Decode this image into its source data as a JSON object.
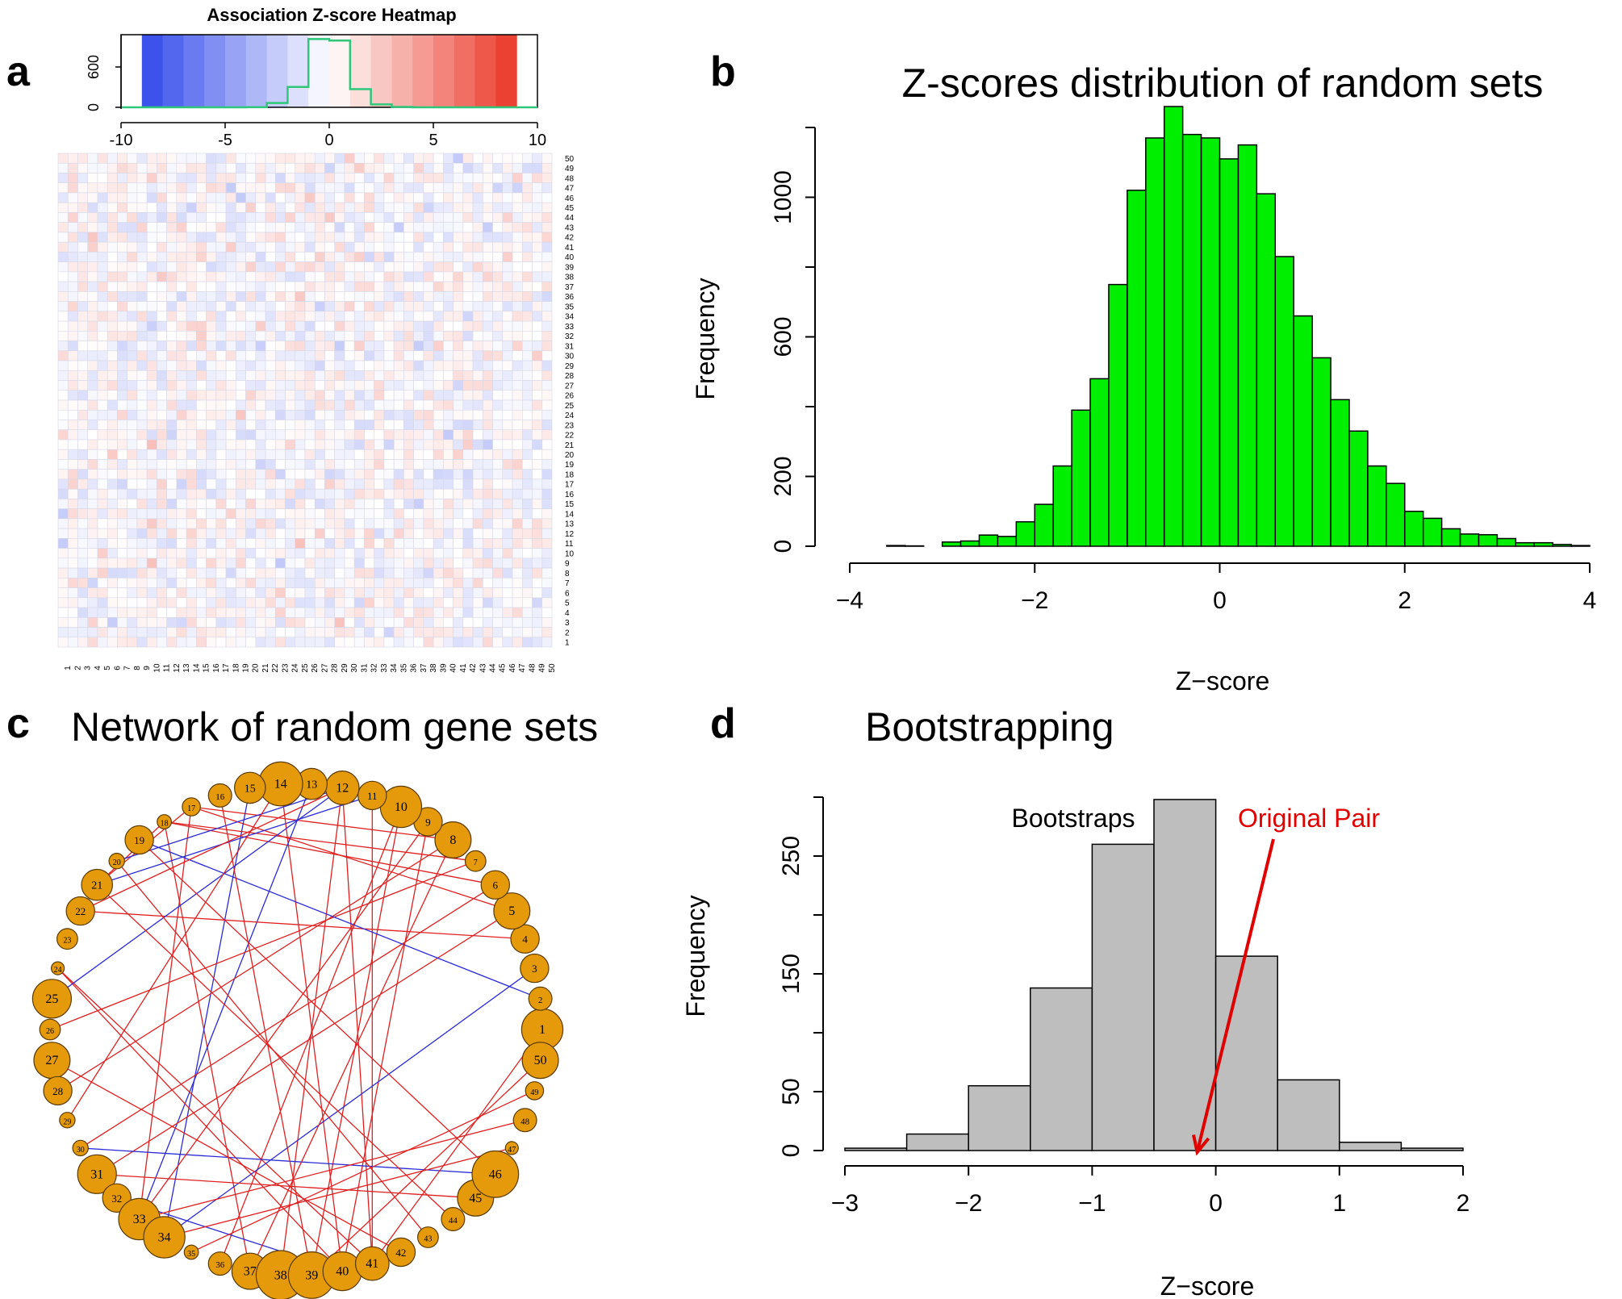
{
  "panel_letters": {
    "a": "a",
    "b": "b",
    "c": "c",
    "d": "d"
  },
  "colors": {
    "heat_negative": "#1a33e8",
    "heat_neutral": "#ffffff",
    "heat_positive": "#e8200f",
    "key_histogram_line": "#2ec77a",
    "histogram_b_fill": "#00ee00",
    "histogram_d_fill": "#bebebe",
    "node_fill": "#e59a0b",
    "edge_positive": "#e02020",
    "edge_negative": "#2b2bd6",
    "arrow_color": "#e00000"
  },
  "chart_data": [
    {
      "panel": "a",
      "type": "heatmap",
      "title": "Association Z-score Heatmap",
      "color_key": {
        "range": [
          -10,
          10
        ],
        "bin_edges": [
          -9,
          -8,
          -7,
          -6,
          -5,
          -4,
          -3,
          -2,
          -1,
          0,
          1,
          2,
          3,
          4,
          5,
          6,
          7,
          8,
          9
        ],
        "ticks": [
          "-10",
          "-5",
          "0",
          "5",
          "10"
        ],
        "count_axis_ticks": [
          "0",
          "600"
        ],
        "count_axis_max": 1000,
        "histogram_counts": [
          0,
          0,
          0,
          0,
          0,
          0,
          2,
          60,
          280,
          940,
          920,
          250,
          40,
          5,
          0,
          0,
          0,
          0,
          0,
          0
        ]
      },
      "grid_size": 50,
      "row_labels": [
        "1",
        "2",
        "3",
        "4",
        "5",
        "6",
        "7",
        "8",
        "9",
        "10",
        "11",
        "12",
        "13",
        "14",
        "15",
        "16",
        "17",
        "18",
        "19",
        "20",
        "21",
        "22",
        "23",
        "24",
        "25",
        "26",
        "27",
        "28",
        "29",
        "30",
        "31",
        "32",
        "33",
        "34",
        "35",
        "36",
        "37",
        "38",
        "39",
        "40",
        "41",
        "42",
        "43",
        "44",
        "45",
        "46",
        "47",
        "48",
        "49",
        "50"
      ],
      "col_labels": [
        "1",
        "2",
        "3",
        "4",
        "5",
        "6",
        "7",
        "8",
        "9",
        "10",
        "11",
        "12",
        "13",
        "14",
        "15",
        "16",
        "17",
        "18",
        "19",
        "20",
        "21",
        "22",
        "23",
        "24",
        "25",
        "26",
        "27",
        "28",
        "29",
        "30",
        "31",
        "32",
        "33",
        "34",
        "35",
        "36",
        "37",
        "38",
        "39",
        "40",
        "41",
        "42",
        "43",
        "44",
        "45",
        "46",
        "47",
        "48",
        "49",
        "50"
      ],
      "values_note": "50x50 matrix of association z-scores; values mostly within -3..3"
    },
    {
      "panel": "b",
      "type": "bar",
      "title": "Z-scores distribution of  random sets",
      "xlabel": "Z−score",
      "ylabel": "Frequency",
      "bin_width": 0.2,
      "bin_start": -3.6,
      "values": [
        2,
        1,
        0,
        12,
        15,
        32,
        28,
        70,
        120,
        230,
        390,
        480,
        750,
        1020,
        1170,
        1260,
        1180,
        1170,
        1110,
        1150,
        1010,
        830,
        660,
        540,
        420,
        330,
        230,
        180,
        100,
        80,
        50,
        35,
        33,
        22,
        10,
        10,
        5,
        2
      ],
      "xlim": [
        -4,
        4
      ],
      "ylim": [
        0,
        1200
      ],
      "xticks": [
        "−4",
        "−2",
        "0",
        "2",
        "4"
      ],
      "yticks": [
        "0",
        "200",
        "600",
        "1000"
      ]
    },
    {
      "panel": "d",
      "type": "bar",
      "title": "Bootstrapping",
      "xlabel": "Z−score",
      "ylabel": "Frequency",
      "bin_width": 0.5,
      "bin_start": -3.0,
      "values": [
        2,
        14,
        55,
        138,
        260,
        298,
        165,
        60,
        7,
        2
      ],
      "xlim": [
        -3,
        2
      ],
      "ylim": [
        0,
        300
      ],
      "xticks": [
        "−3",
        "−2",
        "−1",
        "0",
        "1",
        "2"
      ],
      "yticks": [
        "0",
        "50",
        "150",
        "250"
      ],
      "annotations": [
        {
          "text": "Bootstraps"
        },
        {
          "text": "Original Pair",
          "points_to_x": -0.15
        }
      ]
    }
  ],
  "network": {
    "title": "Network of random gene sets",
    "nodes": [
      {
        "id": "1",
        "size": 1.6
      },
      {
        "id": "2",
        "size": 0.9
      },
      {
        "id": "3",
        "size": 1.1
      },
      {
        "id": "4",
        "size": 1.1
      },
      {
        "id": "5",
        "size": 1.4
      },
      {
        "id": "6",
        "size": 1.1
      },
      {
        "id": "7",
        "size": 0.8
      },
      {
        "id": "8",
        "size": 1.4
      },
      {
        "id": "9",
        "size": 1.1
      },
      {
        "id": "10",
        "size": 1.6
      },
      {
        "id": "11",
        "size": 1.1
      },
      {
        "id": "12",
        "size": 1.3
      },
      {
        "id": "13",
        "size": 1.2
      },
      {
        "id": "14",
        "size": 1.7
      },
      {
        "id": "15",
        "size": 1.2
      },
      {
        "id": "16",
        "size": 0.9
      },
      {
        "id": "17",
        "size": 0.7
      },
      {
        "id": "18",
        "size": 0.55
      },
      {
        "id": "19",
        "size": 1.1
      },
      {
        "id": "20",
        "size": 0.6
      },
      {
        "id": "21",
        "size": 1.2
      },
      {
        "id": "22",
        "size": 1.1
      },
      {
        "id": "23",
        "size": 0.8
      },
      {
        "id": "24",
        "size": 0.5
      },
      {
        "id": "25",
        "size": 1.5
      },
      {
        "id": "26",
        "size": 0.8
      },
      {
        "id": "27",
        "size": 1.4
      },
      {
        "id": "28",
        "size": 1.1
      },
      {
        "id": "29",
        "size": 0.6
      },
      {
        "id": "30",
        "size": 0.6
      },
      {
        "id": "31",
        "size": 1.5
      },
      {
        "id": "32",
        "size": 1.1
      },
      {
        "id": "33",
        "size": 1.6
      },
      {
        "id": "34",
        "size": 1.6
      },
      {
        "id": "35",
        "size": 0.55
      },
      {
        "id": "36",
        "size": 0.9
      },
      {
        "id": "37",
        "size": 1.4
      },
      {
        "id": "38",
        "size": 1.9
      },
      {
        "id": "39",
        "size": 1.8
      },
      {
        "id": "40",
        "size": 1.5
      },
      {
        "id": "41",
        "size": 1.3
      },
      {
        "id": "42",
        "size": 1.1
      },
      {
        "id": "43",
        "size": 0.8
      },
      {
        "id": "44",
        "size": 0.9
      },
      {
        "id": "45",
        "size": 1.4
      },
      {
        "id": "46",
        "size": 1.8
      },
      {
        "id": "47",
        "size": 0.5
      },
      {
        "id": "48",
        "size": 0.9
      },
      {
        "id": "49",
        "size": 0.7
      },
      {
        "id": "50",
        "size": 1.4
      }
    ],
    "edges": [
      {
        "from": "18",
        "to": "6",
        "sign": "positive"
      },
      {
        "from": "18",
        "to": "7",
        "sign": "positive"
      },
      {
        "from": "17",
        "to": "5",
        "sign": "positive"
      },
      {
        "from": "17",
        "to": "8",
        "sign": "positive"
      },
      {
        "from": "17",
        "to": "33",
        "sign": "positive"
      },
      {
        "from": "18",
        "to": "21",
        "sign": "positive"
      },
      {
        "from": "17",
        "to": "21",
        "sign": "positive"
      },
      {
        "from": "18",
        "to": "37",
        "sign": "positive"
      },
      {
        "from": "20",
        "to": "12",
        "sign": "negative"
      },
      {
        "from": "21",
        "to": "11",
        "sign": "negative"
      },
      {
        "from": "14",
        "to": "40",
        "sign": "positive"
      },
      {
        "from": "15",
        "to": "34",
        "sign": "negative"
      },
      {
        "from": "13",
        "to": "33",
        "sign": "negative"
      },
      {
        "from": "12",
        "to": "38",
        "sign": "positive"
      },
      {
        "from": "12",
        "to": "41",
        "sign": "positive"
      },
      {
        "from": "11",
        "to": "41",
        "sign": "positive"
      },
      {
        "from": "10",
        "to": "39",
        "sign": "positive"
      },
      {
        "from": "10",
        "to": "36",
        "sign": "positive"
      },
      {
        "from": "9",
        "to": "40",
        "sign": "positive"
      },
      {
        "from": "8",
        "to": "28",
        "sign": "positive"
      },
      {
        "from": "7",
        "to": "26",
        "sign": "positive"
      },
      {
        "from": "6",
        "to": "30",
        "sign": "positive"
      },
      {
        "from": "5",
        "to": "31",
        "sign": "positive"
      },
      {
        "from": "4",
        "to": "22",
        "sign": "positive"
      },
      {
        "from": "24",
        "to": "41",
        "sign": "positive"
      },
      {
        "from": "24",
        "to": "40",
        "sign": "positive"
      },
      {
        "from": "25",
        "to": "12",
        "sign": "negative"
      },
      {
        "from": "2",
        "to": "19",
        "sign": "negative"
      },
      {
        "from": "3",
        "to": "34",
        "sign": "negative"
      },
      {
        "from": "30",
        "to": "46",
        "sign": "negative"
      },
      {
        "from": "31",
        "to": "45",
        "sign": "positive"
      },
      {
        "from": "32",
        "to": "40",
        "sign": "negative"
      },
      {
        "from": "27",
        "to": "42",
        "sign": "positive"
      },
      {
        "from": "33",
        "to": "48",
        "sign": "positive"
      },
      {
        "from": "34",
        "to": "47",
        "sign": "positive"
      },
      {
        "from": "35",
        "to": "49",
        "sign": "positive"
      },
      {
        "from": "39",
        "to": "50",
        "sign": "positive"
      },
      {
        "from": "41",
        "to": "1",
        "sign": "positive"
      },
      {
        "from": "16",
        "to": "39",
        "sign": "positive"
      },
      {
        "from": "19",
        "to": "46",
        "sign": "positive"
      },
      {
        "from": "20",
        "to": "43",
        "sign": "positive"
      },
      {
        "from": "22",
        "to": "12",
        "sign": "positive"
      },
      {
        "from": "21",
        "to": "44",
        "sign": "positive"
      },
      {
        "from": "29",
        "to": "14",
        "sign": "positive"
      },
      {
        "from": "33",
        "to": "9",
        "sign": "positive"
      },
      {
        "from": "37",
        "to": "8",
        "sign": "positive"
      }
    ]
  }
}
